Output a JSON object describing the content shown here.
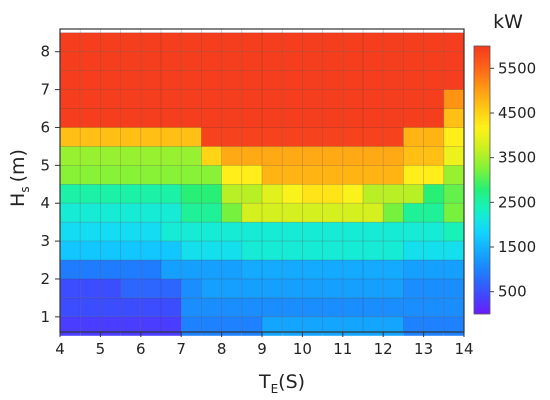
{
  "chart_data": {
    "type": "heatmap",
    "xlabel": "T",
    "xlabel_sub": "E",
    "xlabel_unit": "(S)",
    "ylabel": "H",
    "ylabel_sub": "s",
    "ylabel_unit": "(m)",
    "colorbar_unit": "kW",
    "x_ticks": [
      "4",
      "5",
      "6",
      "7",
      "8",
      "9",
      "10",
      "11",
      "12",
      "13",
      "14"
    ],
    "y_ticks": [
      "1",
      "2",
      "3",
      "4",
      "5",
      "6",
      "7",
      "8"
    ],
    "colorbar_ticks": [
      "500",
      "1500",
      "2500",
      "3500",
      "4500",
      "5500"
    ],
    "xlim": [
      4,
      14
    ],
    "ylim": [
      0.6,
      8.6
    ],
    "vmin": 0,
    "vmax": 6000,
    "x_bins": [
      4.25,
      4.75,
      5.25,
      5.75,
      6.25,
      6.75,
      7.25,
      7.75,
      8.25,
      8.75,
      9.25,
      9.75,
      10.25,
      10.75,
      11.25,
      11.75,
      12.25,
      12.75,
      13.25,
      13.75
    ],
    "y_bins": [
      0.75,
      1.25,
      1.75,
      2.25,
      2.75,
      3.25,
      3.75,
      4.25,
      4.75,
      5.25,
      5.75,
      6.25,
      6.75,
      7.25,
      7.75,
      8.25
    ],
    "values": [
      [
        320,
        320,
        320,
        320,
        320,
        320,
        980,
        980,
        980,
        980,
        1350,
        1350,
        1350,
        1350,
        1350,
        1350,
        1350,
        980,
        980,
        980
      ],
      [
        480,
        480,
        480,
        480,
        480,
        480,
        1100,
        1100,
        1100,
        1100,
        1100,
        1100,
        1100,
        1100,
        1100,
        1100,
        1100,
        1100,
        1100,
        1100
      ],
      [
        480,
        480,
        480,
        720,
        720,
        720,
        1100,
        1300,
        1300,
        1300,
        1300,
        1300,
        1300,
        1300,
        1300,
        1300,
        1300,
        1100,
        1100,
        1100
      ],
      [
        920,
        920,
        920,
        920,
        920,
        1300,
        1300,
        1300,
        1300,
        1400,
        1400,
        1400,
        1400,
        1400,
        1400,
        1400,
        1400,
        1300,
        1300,
        1300
      ],
      [
        1700,
        1700,
        1700,
        1700,
        1700,
        1700,
        2000,
        2000,
        2000,
        2200,
        2200,
        2200,
        2200,
        2200,
        2200,
        2200,
        2200,
        2000,
        2000,
        2000
      ],
      [
        1950,
        1950,
        1950,
        1950,
        1950,
        2200,
        2200,
        2200,
        2200,
        2200,
        2200,
        2200,
        2200,
        2200,
        2200,
        2200,
        2200,
        2200,
        2200,
        2400
      ],
      [
        2200,
        2200,
        2200,
        2200,
        2200,
        2200,
        2600,
        2600,
        3200,
        3800,
        3800,
        3800,
        3800,
        3800,
        3800,
        3800,
        3200,
        2600,
        2600,
        3200
      ],
      [
        2500,
        2500,
        2500,
        2500,
        2500,
        2500,
        2800,
        2800,
        3600,
        3600,
        3900,
        4100,
        4300,
        4300,
        4100,
        3600,
        3600,
        3600,
        2800,
        3100
      ],
      [
        3300,
        3300,
        3300,
        3300,
        3300,
        3300,
        3300,
        3300,
        4200,
        4200,
        4800,
        4800,
        4800,
        4800,
        4800,
        4800,
        4800,
        4200,
        4200,
        3400
      ],
      [
        3400,
        3400,
        3400,
        3400,
        3400,
        3400,
        3400,
        4500,
        4900,
        4900,
        4900,
        4900,
        4900,
        4900,
        4900,
        4900,
        4900,
        4700,
        4700,
        4000
      ],
      [
        4700,
        4700,
        4700,
        4700,
        4700,
        4700,
        4700,
        5900,
        5900,
        5900,
        5900,
        5900,
        5900,
        5900,
        5900,
        5900,
        5900,
        4800,
        4800,
        4200
      ],
      [
        5950,
        5950,
        5950,
        5950,
        5950,
        5950,
        5950,
        5950,
        5950,
        5950,
        5950,
        5950,
        5950,
        5950,
        5950,
        5950,
        5950,
        5950,
        5950,
        4700
      ],
      [
        5950,
        5950,
        5950,
        5950,
        5950,
        5950,
        5950,
        5950,
        5950,
        5950,
        5950,
        5950,
        5950,
        5950,
        5950,
        5950,
        5950,
        5950,
        5950,
        5100
      ],
      [
        5950,
        5950,
        5950,
        5950,
        5950,
        5950,
        5950,
        5950,
        5950,
        5950,
        5950,
        5950,
        5950,
        5950,
        5950,
        5950,
        5950,
        5950,
        5950,
        5950
      ],
      [
        5950,
        5950,
        5950,
        5950,
        5950,
        5950,
        5950,
        5950,
        5950,
        5950,
        5950,
        5950,
        5950,
        5950,
        5950,
        5950,
        5950,
        5950,
        5950,
        5950
      ],
      [
        5950,
        5950,
        5950,
        5950,
        5950,
        5950,
        5950,
        5950,
        5950,
        5950,
        5950,
        5950,
        5950,
        5950,
        5950,
        5950,
        5950,
        5950,
        5950,
        5950
      ]
    ],
    "colormap": [
      "#6a1cff",
      "#3d4bff",
      "#1f7cff",
      "#13a8ff",
      "#12d6ff",
      "#16f2c8",
      "#22f07a",
      "#7cf23a",
      "#c8f020",
      "#fff21a",
      "#ffc814",
      "#ff9614",
      "#ff6018",
      "#f43a1e"
    ],
    "colorbar_position": "right",
    "grid": true
  }
}
